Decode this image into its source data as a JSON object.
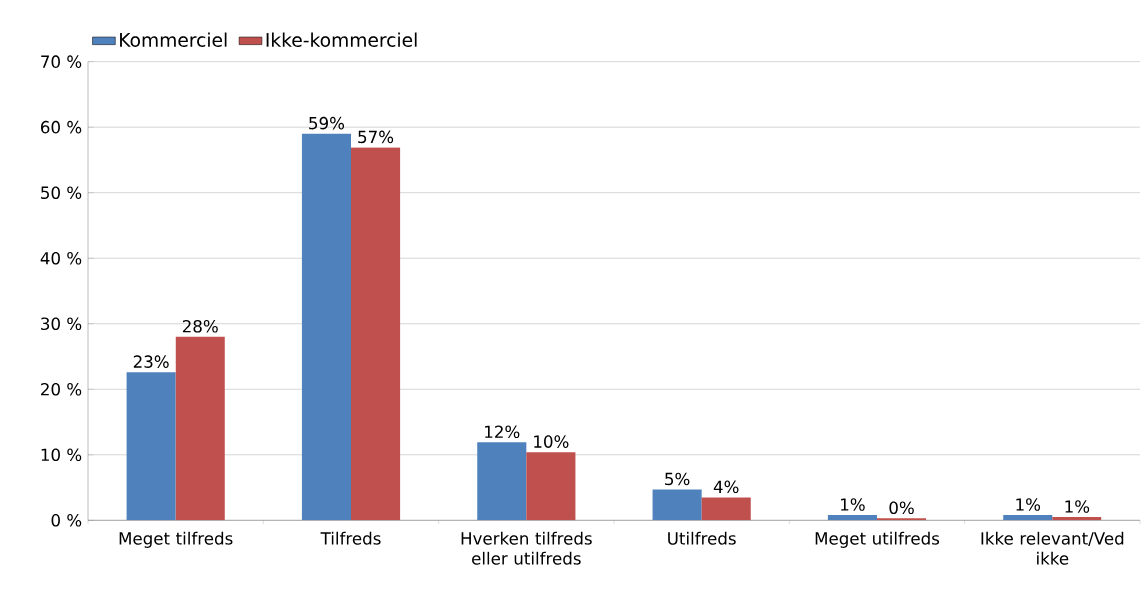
{
  "chart_data": {
    "type": "bar",
    "categories": [
      "Meget tilfreds",
      "Tilfreds",
      "Hverken tilfreds eller utilfreds",
      "Utilfreds",
      "Meget utilfreds",
      "Ikke relevant/Ved ikke"
    ],
    "series": [
      {
        "name": "Kommerciel",
        "color": "#4f81bd",
        "values": [
          22.6,
          59.0,
          11.9,
          4.7,
          0.8,
          0.8
        ],
        "value_labels": [
          "23%",
          "59%",
          "12%",
          "5%",
          "1%",
          "1%"
        ]
      },
      {
        "name": "Ikke-kommerciel",
        "color": "#c0504d",
        "values": [
          28.0,
          56.9,
          10.4,
          3.5,
          0.3,
          0.5
        ],
        "value_labels": [
          "28%",
          "57%",
          "10%",
          "4%",
          "0%",
          "1%"
        ]
      }
    ],
    "ylim": [
      0,
      70
    ],
    "yticks": [
      {
        "value": 0,
        "label": "0 %"
      },
      {
        "value": 10,
        "label": "10 %"
      },
      {
        "value": 20,
        "label": "20 %"
      },
      {
        "value": 30,
        "label": "30 %"
      },
      {
        "value": 40,
        "label": "40 %"
      },
      {
        "value": 50,
        "label": "50 %"
      },
      {
        "value": 60,
        "label": "60 %"
      },
      {
        "value": 70,
        "label": "70 %"
      }
    ],
    "grid": "y",
    "legend": "top left"
  }
}
